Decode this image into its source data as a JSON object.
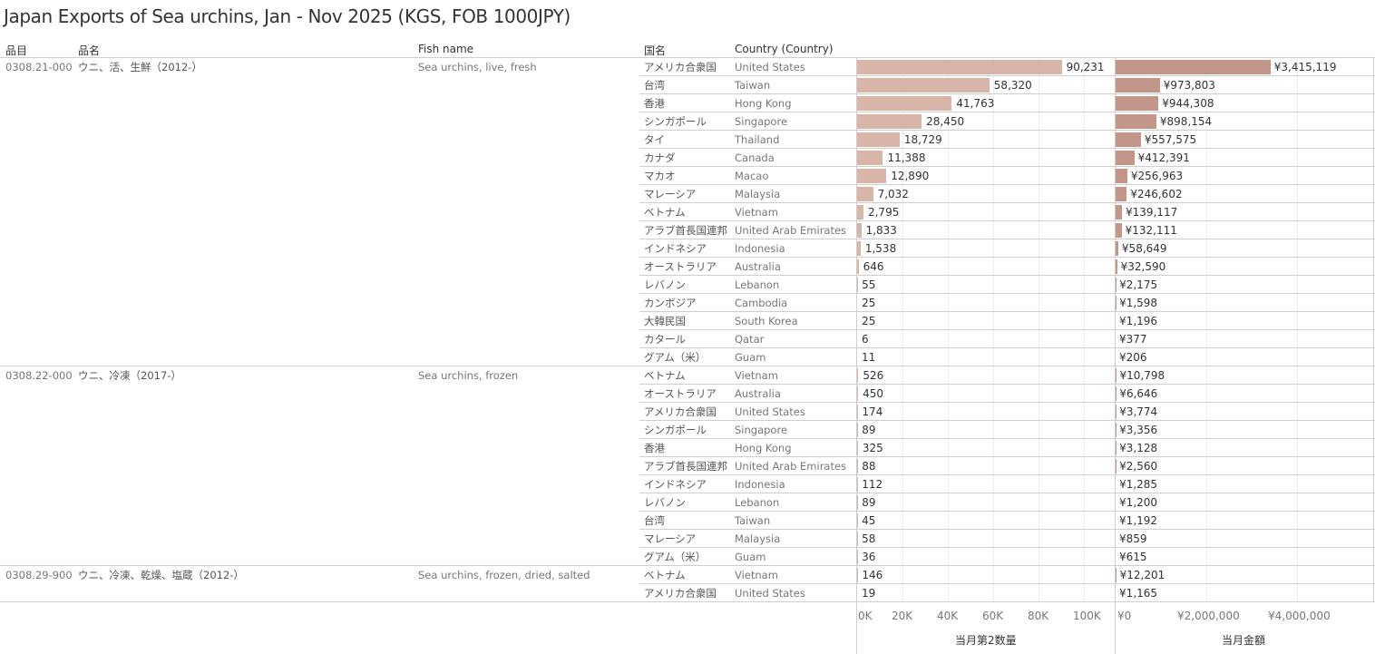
{
  "title": "Japan Exports of Sea urchins, Jan - Nov 2025 (KGS, FOB 1000JPY)",
  "headers": {
    "hs_code": "品目",
    "item_name": "品名",
    "fish_name": "Fish name",
    "country_jp": "国名",
    "country_en": "Country (Country)"
  },
  "chart_data": {
    "type": "bar",
    "title": "Japan Exports of Sea urchins, Jan - Nov 2025 (KGS, FOB 1000JPY)",
    "measures": [
      {
        "name": "当月第2数量",
        "ticks": [
          "0K",
          "20K",
          "40K",
          "60K",
          "80K",
          "100K"
        ],
        "xlim": [
          0,
          100000
        ]
      },
      {
        "name": "当月金額",
        "ticks": [
          "¥0",
          "¥2,000,000",
          "¥4,000,000"
        ],
        "xlim": [
          0,
          4000000
        ]
      }
    ],
    "groups": [
      {
        "code": "0308.21-000",
        "name_jp": "ウニ、活、生鮮（2012-）",
        "name_en": "Sea urchins, live, fresh",
        "rows": [
          {
            "jp": "アメリカ合衆国",
            "en": "United States",
            "qty": 90231,
            "qty_label": "90,231",
            "value": 3415119,
            "value_label": "¥3,415,119"
          },
          {
            "jp": "台湾",
            "en": "Taiwan",
            "qty": 58320,
            "qty_label": "58,320",
            "value": 973803,
            "value_label": "¥973,803"
          },
          {
            "jp": "香港",
            "en": "Hong Kong",
            "qty": 41763,
            "qty_label": "41,763",
            "value": 944308,
            "value_label": "¥944,308"
          },
          {
            "jp": "シンガポール",
            "en": "Singapore",
            "qty": 28450,
            "qty_label": "28,450",
            "value": 898154,
            "value_label": "¥898,154"
          },
          {
            "jp": "タイ",
            "en": "Thailand",
            "qty": 18729,
            "qty_label": "18,729",
            "value": 557575,
            "value_label": "¥557,575"
          },
          {
            "jp": "カナダ",
            "en": "Canada",
            "qty": 11388,
            "qty_label": "11,388",
            "value": 412391,
            "value_label": "¥412,391"
          },
          {
            "jp": "マカオ",
            "en": "Macao",
            "qty": 12890,
            "qty_label": "12,890",
            "value": 256963,
            "value_label": "¥256,963"
          },
          {
            "jp": "マレーシア",
            "en": "Malaysia",
            "qty": 7032,
            "qty_label": "7,032",
            "value": 246602,
            "value_label": "¥246,602"
          },
          {
            "jp": "ベトナム",
            "en": "Vietnam",
            "qty": 2795,
            "qty_label": "2,795",
            "value": 139117,
            "value_label": "¥139,117"
          },
          {
            "jp": "アラブ首長国連邦",
            "en": "United Arab Emirates",
            "qty": 1833,
            "qty_label": "1,833",
            "value": 132111,
            "value_label": "¥132,111"
          },
          {
            "jp": "インドネシア",
            "en": "Indonesia",
            "qty": 1538,
            "qty_label": "1,538",
            "value": 58649,
            "value_label": "¥58,649"
          },
          {
            "jp": "オーストラリア",
            "en": "Australia",
            "qty": 646,
            "qty_label": "646",
            "value": 32590,
            "value_label": "¥32,590"
          },
          {
            "jp": "レバノン",
            "en": "Lebanon",
            "qty": 55,
            "qty_label": "55",
            "value": 2175,
            "value_label": "¥2,175"
          },
          {
            "jp": "カンボジア",
            "en": "Cambodia",
            "qty": 25,
            "qty_label": "25",
            "value": 1598,
            "value_label": "¥1,598"
          },
          {
            "jp": "大韓民国",
            "en": "South Korea",
            "qty": 25,
            "qty_label": "25",
            "value": 1196,
            "value_label": "¥1,196"
          },
          {
            "jp": "カタール",
            "en": "Qatar",
            "qty": 6,
            "qty_label": "6",
            "value": 377,
            "value_label": "¥377"
          },
          {
            "jp": "グアム（米）",
            "en": "Guam",
            "qty": 11,
            "qty_label": "11",
            "value": 206,
            "value_label": "¥206"
          }
        ]
      },
      {
        "code": "0308.22-000",
        "name_jp": "ウニ、冷凍（2017-）",
        "name_en": "Sea urchins, frozen",
        "rows": [
          {
            "jp": "ベトナム",
            "en": "Vietnam",
            "qty": 526,
            "qty_label": "526",
            "value": 10798,
            "value_label": "¥10,798"
          },
          {
            "jp": "オーストラリア",
            "en": "Australia",
            "qty": 450,
            "qty_label": "450",
            "value": 6646,
            "value_label": "¥6,646"
          },
          {
            "jp": "アメリカ合衆国",
            "en": "United States",
            "qty": 174,
            "qty_label": "174",
            "value": 3774,
            "value_label": "¥3,774"
          },
          {
            "jp": "シンガポール",
            "en": "Singapore",
            "qty": 89,
            "qty_label": "89",
            "value": 3356,
            "value_label": "¥3,356"
          },
          {
            "jp": "香港",
            "en": "Hong Kong",
            "qty": 325,
            "qty_label": "325",
            "value": 3128,
            "value_label": "¥3,128"
          },
          {
            "jp": "アラブ首長国連邦",
            "en": "United Arab Emirates",
            "qty": 88,
            "qty_label": "88",
            "value": 2560,
            "value_label": "¥2,560"
          },
          {
            "jp": "インドネシア",
            "en": "Indonesia",
            "qty": 112,
            "qty_label": "112",
            "value": 1285,
            "value_label": "¥1,285"
          },
          {
            "jp": "レバノン",
            "en": "Lebanon",
            "qty": 89,
            "qty_label": "89",
            "value": 1200,
            "value_label": "¥1,200"
          },
          {
            "jp": "台湾",
            "en": "Taiwan",
            "qty": 45,
            "qty_label": "45",
            "value": 1192,
            "value_label": "¥1,192"
          },
          {
            "jp": "マレーシア",
            "en": "Malaysia",
            "qty": 58,
            "qty_label": "58",
            "value": 859,
            "value_label": "¥859"
          },
          {
            "jp": "グアム（米）",
            "en": "Guam",
            "qty": 36,
            "qty_label": "36",
            "value": 615,
            "value_label": "¥615"
          }
        ]
      },
      {
        "code": "0308.29-900",
        "name_jp": "ウニ、冷凍、乾燥、塩蔵（2012-）",
        "name_en": "Sea urchins, frozen, dried, salted",
        "rows": [
          {
            "jp": "ベトナム",
            "en": "Vietnam",
            "qty": 146,
            "qty_label": "146",
            "value": 12201,
            "value_label": "¥12,201"
          },
          {
            "jp": "アメリカ合衆国",
            "en": "United States",
            "qty": 19,
            "qty_label": "19",
            "value": 1165,
            "value_label": "¥1,165"
          }
        ]
      }
    ],
    "colors": {
      "qty_bar": "#d7b5a8",
      "value_bar": "#c2978a"
    }
  }
}
